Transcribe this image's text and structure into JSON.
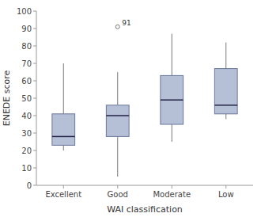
{
  "chart_data": {
    "type": "box",
    "categories": [
      "Excellent",
      "Good",
      "Moderate",
      "Low"
    ],
    "boxes": [
      {
        "whislo": 20,
        "q1": 23,
        "med": 28,
        "q3": 41,
        "whishi": 70,
        "fliers": []
      },
      {
        "whislo": 5,
        "q1": 28,
        "med": 40,
        "q3": 46,
        "whishi": 65,
        "fliers": [
          91
        ]
      },
      {
        "whislo": 25,
        "q1": 35,
        "med": 49,
        "q3": 63,
        "whishi": 87,
        "fliers": []
      },
      {
        "whislo": 38,
        "q1": 41,
        "med": 46,
        "q3": 67,
        "whishi": 82,
        "fliers": []
      }
    ],
    "annotations": [
      {
        "text": "91",
        "x": "Good",
        "y": 91.5
      }
    ],
    "xlabel": "WAI classification",
    "ylabel": "ENEDE score",
    "ylim": [
      0,
      100
    ],
    "yticks": [
      0,
      10,
      20,
      30,
      40,
      50,
      60,
      70,
      80,
      90,
      100
    ],
    "color": "#8E9EC2",
    "grid": false
  }
}
